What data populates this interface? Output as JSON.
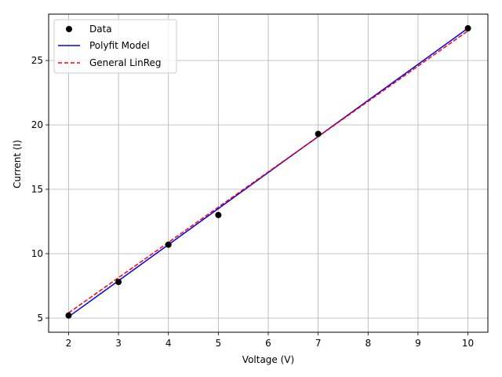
{
  "chart_data": {
    "type": "line",
    "xlabel": "Voltage (V)",
    "ylabel": "Current (I)",
    "xlim": [
      1.6,
      10.4
    ],
    "ylim": [
      3.9,
      28.6
    ],
    "xticks": [
      2,
      3,
      4,
      5,
      6,
      7,
      8,
      9,
      10
    ],
    "yticks": [
      5,
      10,
      15,
      20,
      25
    ],
    "grid": true,
    "legend_position": "top-left",
    "series": [
      {
        "name": "Data",
        "kind": "scatter",
        "color": "#000000",
        "x": [
          2,
          3,
          4,
          5,
          7,
          10
        ],
        "y": [
          5.2,
          7.8,
          10.7,
          13.0,
          19.3,
          27.5
        ]
      },
      {
        "name": "Polyfit Model",
        "kind": "line",
        "style": "solid",
        "color": "#0000ff",
        "x": [
          2,
          10
        ],
        "y": [
          5.1,
          27.5
        ]
      },
      {
        "name": "General LinReg",
        "kind": "line",
        "style": "dashed",
        "color": "#ff0000",
        "x": [
          2,
          10
        ],
        "y": [
          5.4,
          27.3
        ]
      }
    ]
  }
}
